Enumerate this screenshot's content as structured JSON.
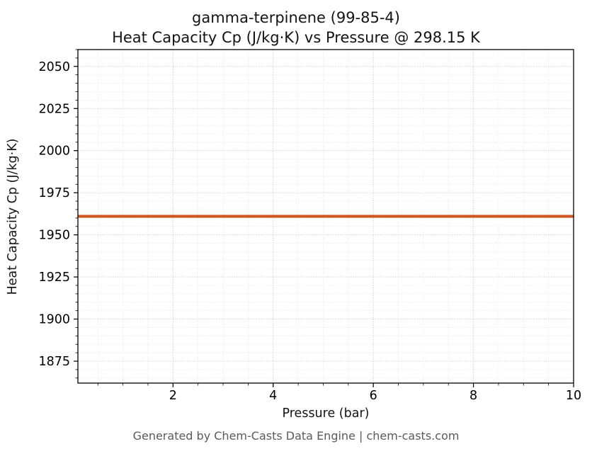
{
  "page": {
    "title_line1": "gamma-terpinene (99-85-4)",
    "title_line2": "Heat Capacity Cp (J/kg·K) vs Pressure @ 298.15 K",
    "footer": "Generated by Chem-Casts Data Engine | chem-casts.com"
  },
  "chart_data": {
    "type": "line",
    "title": "gamma-terpinene (99-85-4)\nHeat Capacity Cp (J/kg·K) vs Pressure @ 298.15 K",
    "xlabel": "Pressure (bar)",
    "ylabel": "Heat Capacity Cp (J/kg·K)",
    "xlim": [
      0.1,
      10
    ],
    "ylim": [
      1862,
      2060
    ],
    "x_ticks": [
      2,
      4,
      6,
      8,
      10
    ],
    "y_ticks": [
      1875,
      1900,
      1925,
      1950,
      1975,
      2000,
      2025,
      2050
    ],
    "x_minor_step": 0.5,
    "y_minor_step": 5,
    "grid": true,
    "legend": "none",
    "series": [
      {
        "name": "Heat Capacity Cp",
        "color": "#d2541e",
        "width": 4,
        "x": [
          0.1,
          10
        ],
        "y": [
          1961,
          1961
        ]
      }
    ]
  }
}
